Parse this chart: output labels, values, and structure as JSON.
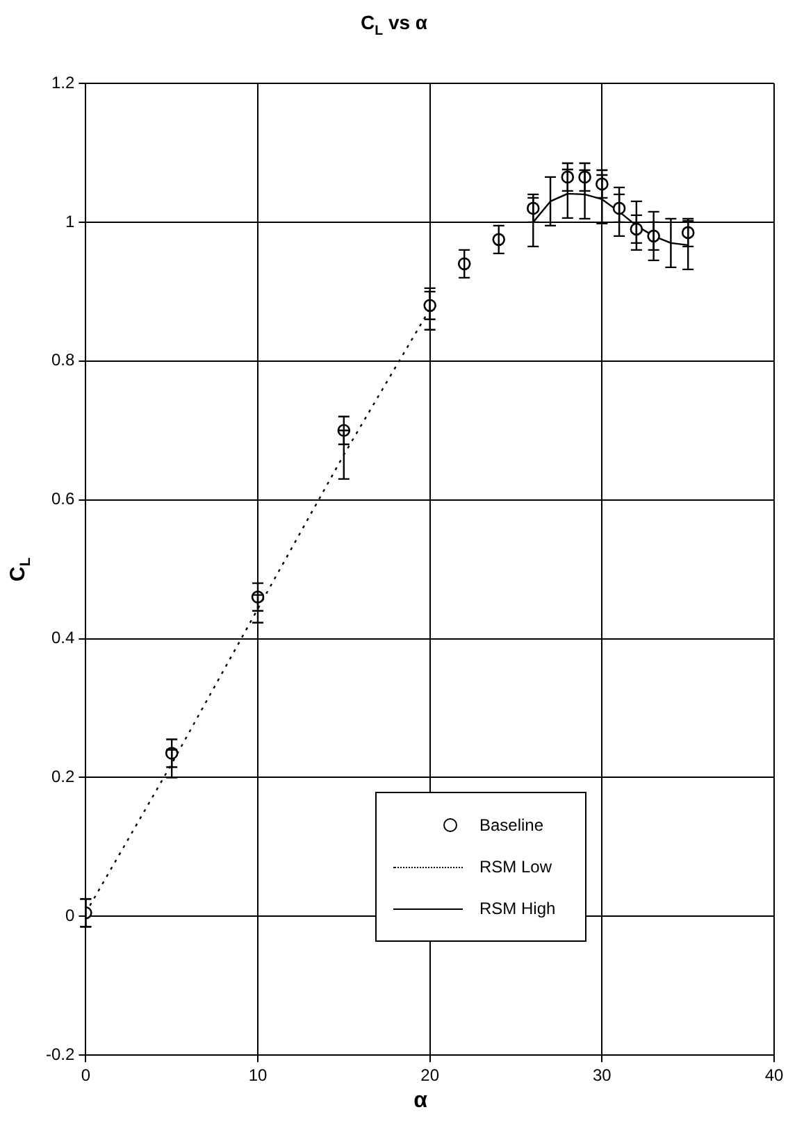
{
  "chart_data": {
    "type": "scatter",
    "title": "C$_{L}$ vs α",
    "xlabel": "α",
    "ylabel": "C$_{L}$",
    "xlim": [
      0,
      40
    ],
    "xticks": [
      0,
      10,
      20,
      30,
      40
    ],
    "ylim": [
      -0.2,
      1.2
    ],
    "yticks": [
      -0.2,
      0,
      0.2,
      0.4,
      0.6,
      0.8,
      1,
      1.2
    ],
    "grid": true,
    "legend": "bottom right",
    "series": [
      {
        "name": "Baseline",
        "marker": "circle",
        "color": "#000000",
        "x": [
          0,
          5,
          10,
          15,
          20,
          22,
          24,
          26,
          28,
          29,
          30,
          31,
          32,
          33,
          35
        ],
        "values": [
          0.005,
          0.235,
          0.46,
          0.7,
          0.88,
          0.94,
          0.975,
          1.02,
          1.065,
          1.065,
          1.055,
          1.02,
          0.99,
          0.98,
          0.985
        ],
        "errors": [
          0.02,
          0.02,
          0.02,
          0.02,
          0.02,
          0.02,
          0.02,
          0.02,
          0.02,
          0.02,
          0.02,
          0.02,
          0.02,
          0.02,
          0.02
        ]
      },
      {
        "name": "RSM Low",
        "type": "line",
        "marker": "none",
        "line_style": "dotted",
        "color": "#000000",
        "x": [
          0,
          5,
          10,
          15,
          20
        ],
        "values": [
          0.005,
          0.22,
          0.443,
          0.665,
          0.875
        ],
        "errors": [
          0.02,
          0.02,
          0.02,
          0.035,
          0.03
        ]
      },
      {
        "name": "RSM High",
        "type": "line",
        "marker": "none",
        "line_style": "solid",
        "color": "#000000",
        "x": [
          26,
          27,
          28,
          29,
          30,
          31,
          32,
          33,
          34,
          35
        ],
        "values": [
          1.0,
          1.03,
          1.041,
          1.04,
          1.033,
          1.015,
          0.995,
          0.98,
          0.97,
          0.967
        ],
        "errors": [
          0.035,
          0.035,
          0.035,
          0.035,
          0.035,
          0.035,
          0.035,
          0.035,
          0.035,
          0.035
        ]
      }
    ]
  }
}
